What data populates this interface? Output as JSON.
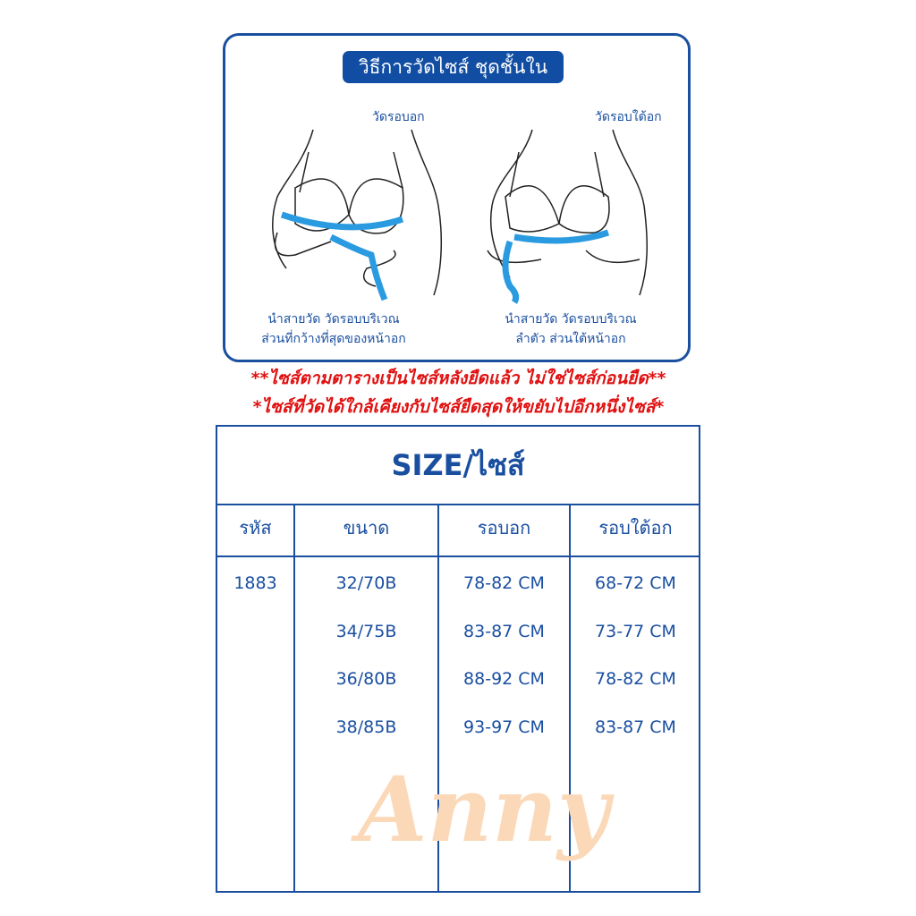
{
  "guide": {
    "title": "วิธีการวัดไซส์ ชุดชั้นใน",
    "left": {
      "label": "วัดรอบอก",
      "caption_line1": "นำสายวัด วัดรอบบริเวณ",
      "caption_line2": "ส่วนที่กว้างที่สุดของหน้าอก"
    },
    "right": {
      "label": "วัดรอบใต้อก",
      "caption_line1": "นำสายวัด วัดรอบบริเวณ",
      "caption_line2": "ลำตัว ส่วนใต้หน้าอก"
    }
  },
  "notes": [
    "**ไซส์ตามตารางเป็นไซส์หลังยืดแล้ว ไม่ใช่ไซส์ก่อนยืด**",
    "*ไซส์ที่วัดได้ใกล้เคียงกับไซส์ยืดสุดให้ขยับไปอีกหนึ่งไซส์*"
  ],
  "table": {
    "title": "SIZE/ไซส์",
    "headers": [
      "รหัส",
      "ขนาด",
      "รอบอก",
      "รอบใต้อก"
    ],
    "code": "1883",
    "rows": [
      {
        "size": "32/70B",
        "bust": "78-82 CM",
        "underbust": "68-72 CM"
      },
      {
        "size": "34/75B",
        "bust": "83-87 CM",
        "underbust": "73-77 CM"
      },
      {
        "size": "36/80B",
        "bust": "88-92 CM",
        "underbust": "78-82 CM"
      },
      {
        "size": "38/85B",
        "bust": "93-97 CM",
        "underbust": "83-87 CM"
      }
    ]
  },
  "watermark": "Anny",
  "colors": {
    "brand_blue": "#1a4fa0",
    "note_red": "#e01010",
    "tape_blue": "#2a9be0"
  }
}
